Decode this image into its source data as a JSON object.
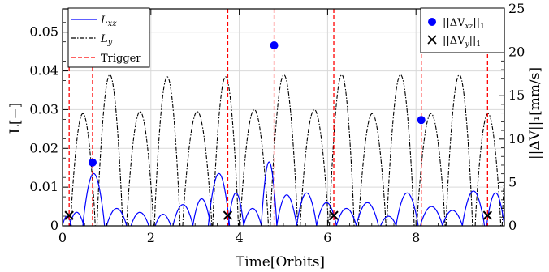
{
  "chart_data": {
    "type": "line",
    "xlabel": "Time[Orbits]",
    "ylabel_left": "L[−]",
    "ylabel_right": "||ΔV||₁[mm/s]",
    "xlim": [
      0,
      10
    ],
    "ylim_left": [
      0,
      0.056
    ],
    "ylim_right": [
      0,
      25
    ],
    "x_ticks": [
      0,
      2,
      4,
      6,
      8
    ],
    "y_left_ticks": [
      0,
      0.01,
      0.02,
      0.03,
      0.04,
      0.05
    ],
    "y_right_ticks": [
      0,
      5,
      10,
      15,
      20,
      25
    ],
    "grid": true,
    "legend_left": {
      "placement": "top-left",
      "entries": [
        "L_xz",
        "L_y",
        "Trigger"
      ]
    },
    "legend_right": {
      "placement": "top-right",
      "entries": [
        "||ΔV_xz||₁",
        "||ΔV_y||₁"
      ]
    },
    "colors": {
      "L_xz": "#0000ff",
      "L_y": "#000000",
      "Trigger": "#ff0000",
      "dvxz": "#0000ff",
      "dvy": "#000000"
    },
    "triggers": [
      0.15,
      0.68,
      3.74,
      4.79,
      6.14,
      8.12,
      9.62
    ],
    "L_y": {
      "humps": [
        {
          "start": 0.18,
          "end": 0.74,
          "peak": 0.029
        },
        {
          "start": 0.78,
          "end": 1.36,
          "peak": 0.039
        },
        {
          "start": 1.45,
          "end": 2.06,
          "peak": 0.0295
        },
        {
          "start": 2.08,
          "end": 2.66,
          "peak": 0.0385
        },
        {
          "start": 2.72,
          "end": 3.38,
          "peak": 0.0295
        },
        {
          "start": 3.4,
          "end": 3.98,
          "peak": 0.0385
        },
        {
          "start": 4.02,
          "end": 4.66,
          "peak": 0.03
        },
        {
          "start": 4.7,
          "end": 5.32,
          "peak": 0.039
        },
        {
          "start": 5.38,
          "end": 6.02,
          "peak": 0.03
        },
        {
          "start": 6.04,
          "end": 6.6,
          "peak": 0.039
        },
        {
          "start": 6.7,
          "end": 7.32,
          "peak": 0.029
        },
        {
          "start": 7.34,
          "end": 7.96,
          "peak": 0.039
        },
        {
          "start": 8.02,
          "end": 8.66,
          "peak": 0.029
        },
        {
          "start": 8.68,
          "end": 9.28,
          "peak": 0.039
        },
        {
          "start": 9.34,
          "end": 9.92,
          "peak": 0.029
        },
        {
          "start": 9.95,
          "end": 10.5,
          "peak": 0.039
        }
      ]
    },
    "L_xz": {
      "humps": [
        {
          "start": 0.0,
          "end": 0.2,
          "peak": 0.0025
        },
        {
          "start": 0.16,
          "end": 0.48,
          "peak": 0.0035
        },
        {
          "start": 0.46,
          "end": 0.95,
          "peak": 0.0135
        },
        {
          "start": 1.0,
          "end": 1.45,
          "peak": 0.0045
        },
        {
          "start": 1.55,
          "end": 1.95,
          "peak": 0.0035
        },
        {
          "start": 2.1,
          "end": 2.45,
          "peak": 0.003
        },
        {
          "start": 2.5,
          "end": 2.95,
          "peak": 0.0055
        },
        {
          "start": 2.95,
          "end": 3.35,
          "peak": 0.007
        },
        {
          "start": 3.3,
          "end": 3.78,
          "peak": 0.0135
        },
        {
          "start": 3.75,
          "end": 4.1,
          "peak": 0.0085
        },
        {
          "start": 4.1,
          "end": 4.5,
          "peak": 0.0045
        },
        {
          "start": 4.5,
          "end": 4.85,
          "peak": 0.0165
        },
        {
          "start": 4.85,
          "end": 5.3,
          "peak": 0.008
        },
        {
          "start": 5.3,
          "end": 5.75,
          "peak": 0.0085
        },
        {
          "start": 5.75,
          "end": 6.2,
          "peak": 0.006
        },
        {
          "start": 6.2,
          "end": 6.65,
          "peak": 0.0045
        },
        {
          "start": 6.65,
          "end": 7.15,
          "peak": 0.006
        },
        {
          "start": 7.2,
          "end": 7.55,
          "peak": 0.0025
        },
        {
          "start": 7.55,
          "end": 8.05,
          "peak": 0.0085
        },
        {
          "start": 8.1,
          "end": 8.6,
          "peak": 0.005
        },
        {
          "start": 8.6,
          "end": 9.05,
          "peak": 0.004
        },
        {
          "start": 9.05,
          "end": 9.55,
          "peak": 0.009
        },
        {
          "start": 9.6,
          "end": 10.0,
          "peak": 0.0085
        }
      ]
    },
    "dV_xz_points": [
      {
        "x": 0.68,
        "y": 7.3
      },
      {
        "x": 4.79,
        "y": 20.8
      },
      {
        "x": 8.12,
        "y": 12.2
      }
    ],
    "dV_y_points": [
      {
        "x": 0.15,
        "y": 1.2
      },
      {
        "x": 3.74,
        "y": 1.2
      },
      {
        "x": 6.14,
        "y": 1.2
      },
      {
        "x": 9.62,
        "y": 1.2
      }
    ],
    "legend_labels": {
      "L_xz": "L",
      "L_xz_sub": "xz",
      "L_y": "L",
      "L_y_sub": "y",
      "Trigger": "Trigger",
      "dvxz_pre": "||ΔV",
      "dvxz_sub": "xz",
      "dvxz_post": "||",
      "dvxz_post_sub": "1",
      "dvy_pre": "||ΔV",
      "dvy_sub": "y",
      "dvy_post": "||",
      "dvy_post_sub": "1"
    }
  }
}
